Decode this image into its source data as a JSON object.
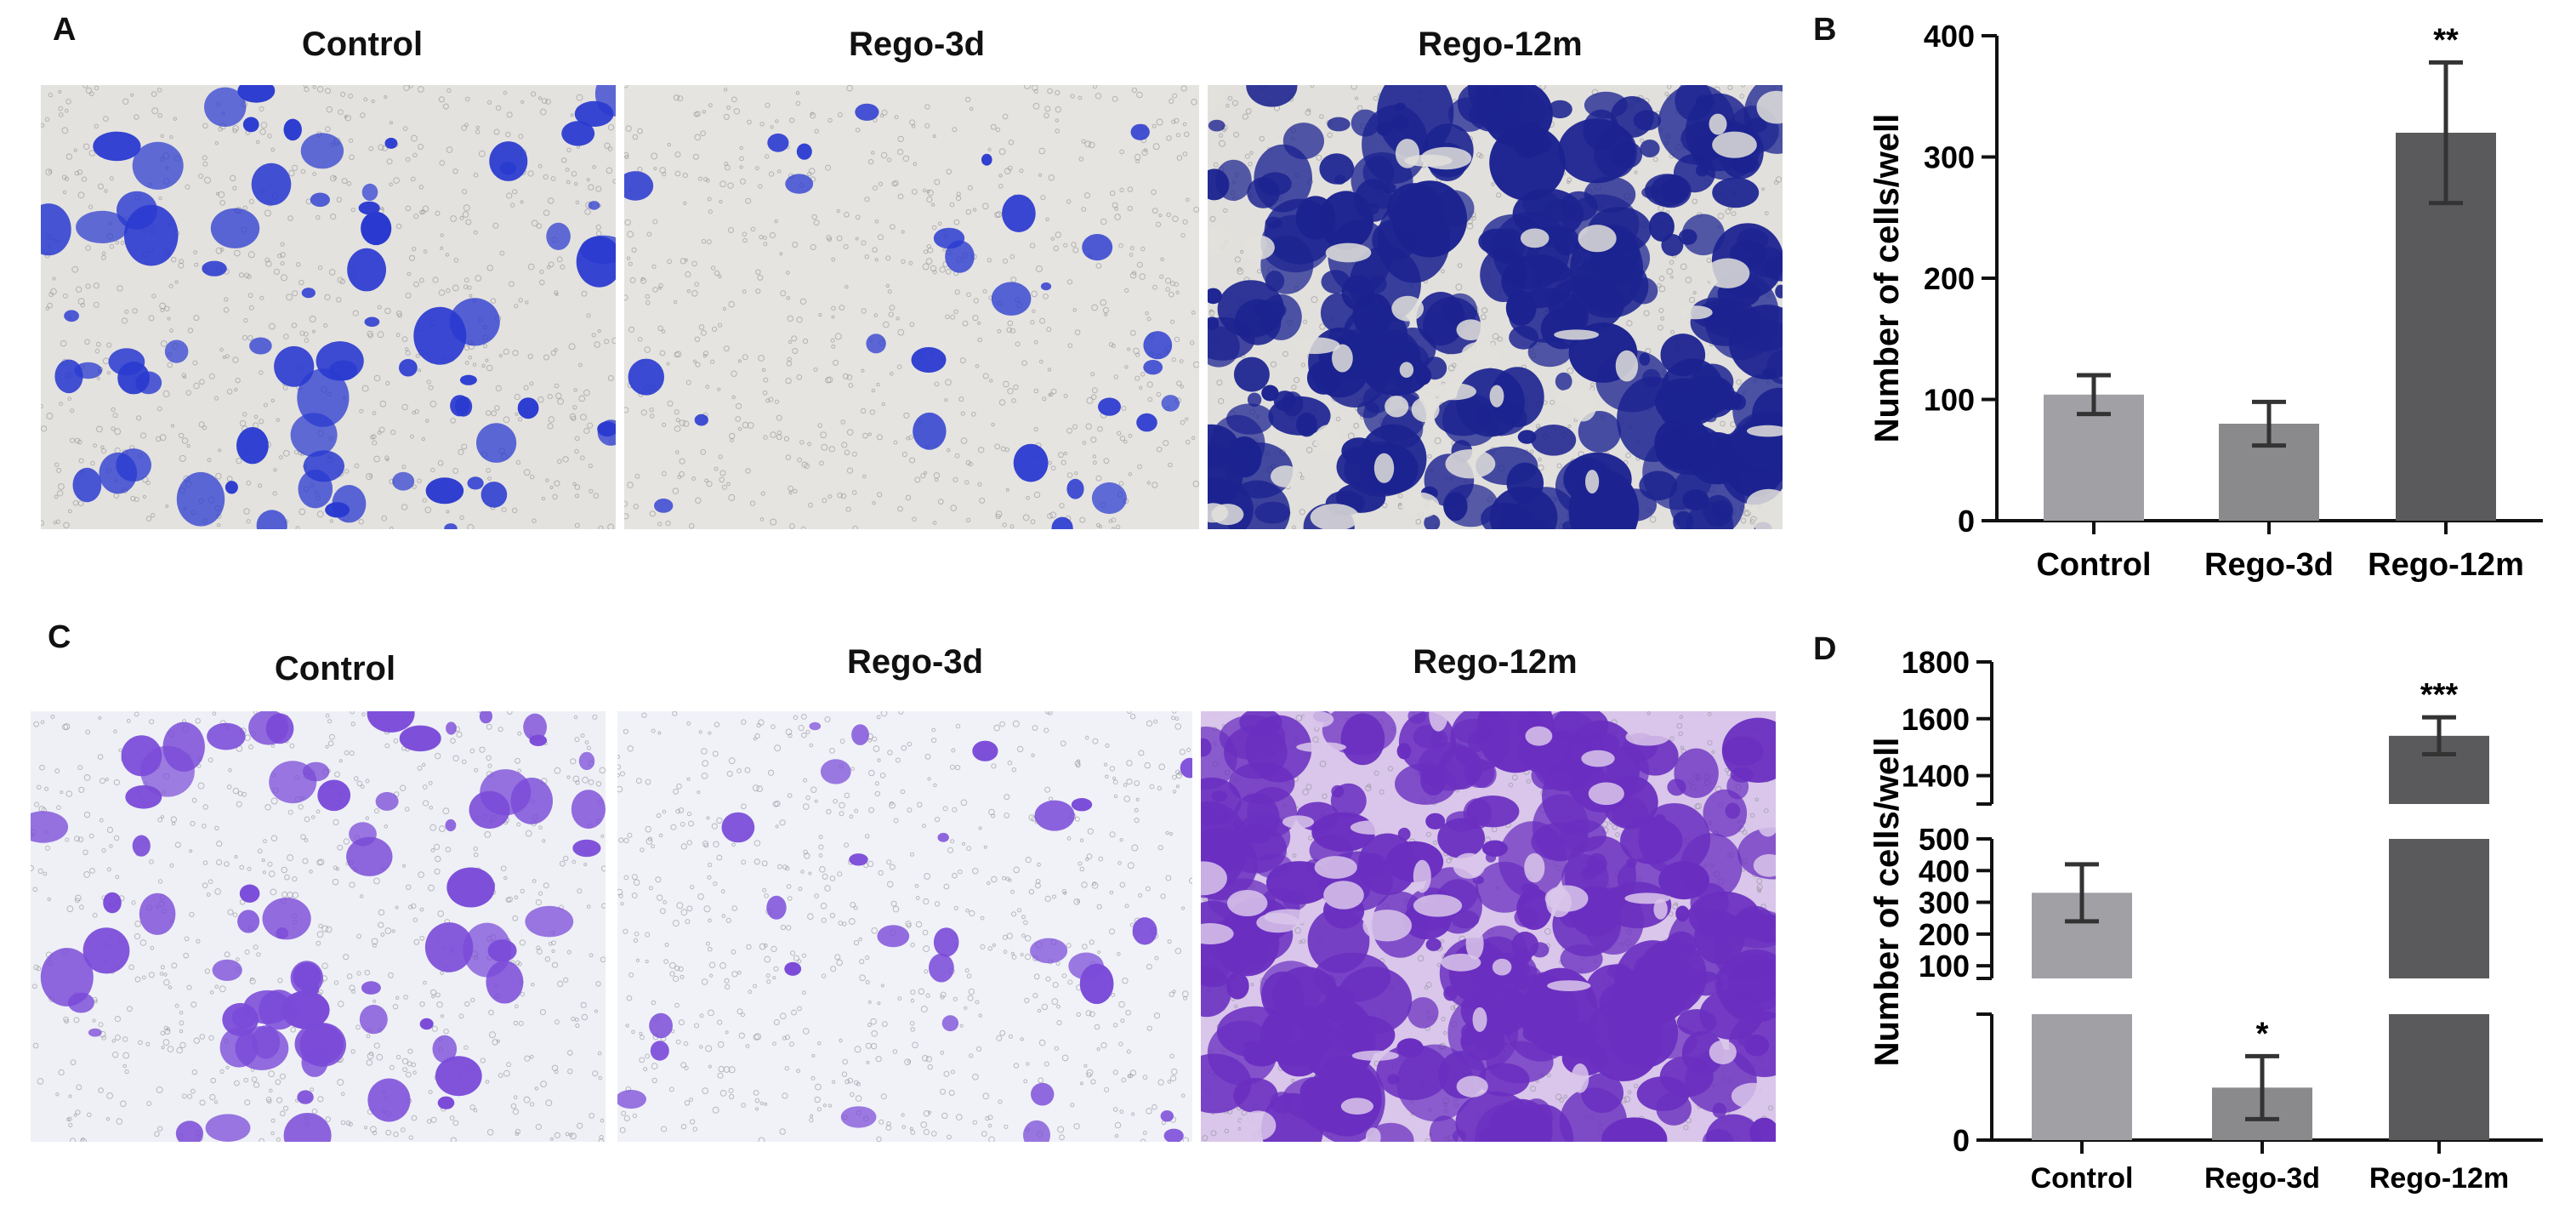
{
  "panels": {
    "A": {
      "letter": "A",
      "images": [
        {
          "title": "Control",
          "stain": "#2a3ad0",
          "density": "moderate"
        },
        {
          "title": "Rego-3d",
          "stain": "#2a3ad0",
          "density": "sparse"
        },
        {
          "title": "Rego-12m",
          "stain": "#1c2390",
          "density": "dense"
        }
      ]
    },
    "C": {
      "letter": "C",
      "images": [
        {
          "title": "Control",
          "stain": "#7a4ad8",
          "density": "moderate"
        },
        {
          "title": "Rego-3d",
          "stain": "#7a4ad8",
          "density": "sparse"
        },
        {
          "title": "Rego-12m",
          "stain": "#6a2fc0",
          "density": "dense"
        }
      ]
    },
    "B": {
      "letter": "B"
    },
    "D": {
      "letter": "D"
    }
  },
  "chart_data": [
    {
      "panel": "B",
      "type": "bar",
      "categories": [
        "Control",
        "Rego-3d",
        "Rego-12m"
      ],
      "values": [
        104,
        80,
        320
      ],
      "errors": [
        16,
        18,
        58
      ],
      "significance": [
        "",
        "",
        "**"
      ],
      "colors": [
        "#a0a0a5",
        "#8a8a8d",
        "#5a5a5c"
      ],
      "ylabel": "Number of cells/well",
      "ylim": [
        0,
        400
      ],
      "yticks": [
        0,
        100,
        200,
        300,
        400
      ],
      "grid": false
    },
    {
      "panel": "D",
      "type": "bar",
      "categories": [
        "Control",
        "Rego-3d",
        "Rego-12m"
      ],
      "values": [
        330,
        25,
        1540
      ],
      "errors": [
        90,
        15,
        65
      ],
      "significance": [
        "",
        "*",
        "***"
      ],
      "colors": [
        "#a0a0a5",
        "#8a8a8d",
        "#5a5a5c"
      ],
      "ylabel": "Number of cells/well",
      "yticks_upper": [
        1400,
        1600,
        1800
      ],
      "yticks_middle": [
        100,
        200,
        300,
        400,
        500
      ],
      "yticks_lower": [
        0
      ],
      "broken_axis": true,
      "grid": false
    }
  ]
}
